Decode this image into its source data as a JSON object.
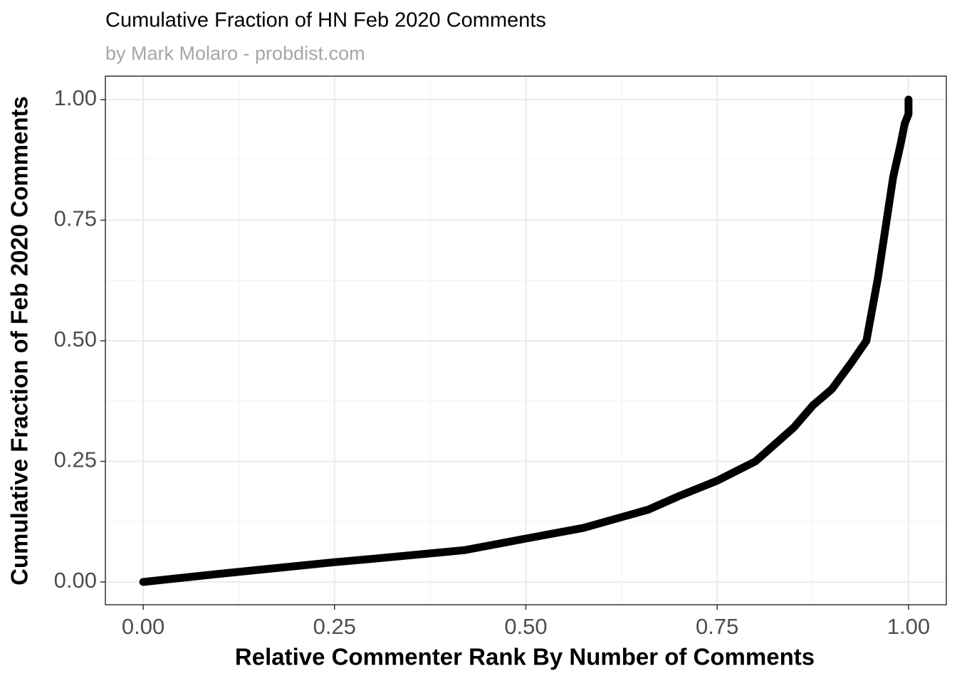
{
  "chart_data": {
    "type": "scatter",
    "title": "Cumulative Fraction of HN Feb 2020 Comments",
    "subtitle": "by Mark Molaro - probdist.com",
    "x_label": "Relative Commenter Rank By Number of Comments",
    "y_label": "Cumulative Fraction of Feb 2020 Comments",
    "x": [
      0,
      0.1,
      0.2,
      0.25,
      0.3,
      0.42,
      0.5,
      0.575,
      0.66,
      0.7,
      0.75,
      0.8,
      0.85,
      0.875,
      0.9,
      0.925,
      0.945,
      0.96,
      0.97,
      0.98,
      0.99,
      0.995,
      1.0,
      1.0,
      1.0
    ],
    "values": [
      0,
      0.017,
      0.033,
      0.041,
      0.048,
      0.066,
      0.09,
      0.112,
      0.15,
      0.178,
      0.21,
      0.25,
      0.32,
      0.366,
      0.4,
      0.454,
      0.5,
      0.63,
      0.735,
      0.84,
      0.91,
      0.95,
      0.97,
      0.98,
      1.0
    ],
    "color": "#000000",
    "xlim": [
      -0.0494,
      1.0494
    ],
    "ylim": [
      -0.0472,
      1.0487
    ],
    "xticks": [
      {
        "value": 0,
        "label": "0.00"
      },
      {
        "value": 0.25,
        "label": "0.25"
      },
      {
        "value": 0.5,
        "label": "0.50"
      },
      {
        "value": 0.75,
        "label": "0.75"
      },
      {
        "value": 1,
        "label": "1.00"
      }
    ],
    "yticks": [
      {
        "value": 0,
        "label": "0.00"
      },
      {
        "value": 0.25,
        "label": "0.25"
      },
      {
        "value": 0.5,
        "label": "0.50"
      },
      {
        "value": 0.75,
        "label": "0.75"
      },
      {
        "value": 1,
        "label": "1.00"
      }
    ],
    "grid": true
  }
}
